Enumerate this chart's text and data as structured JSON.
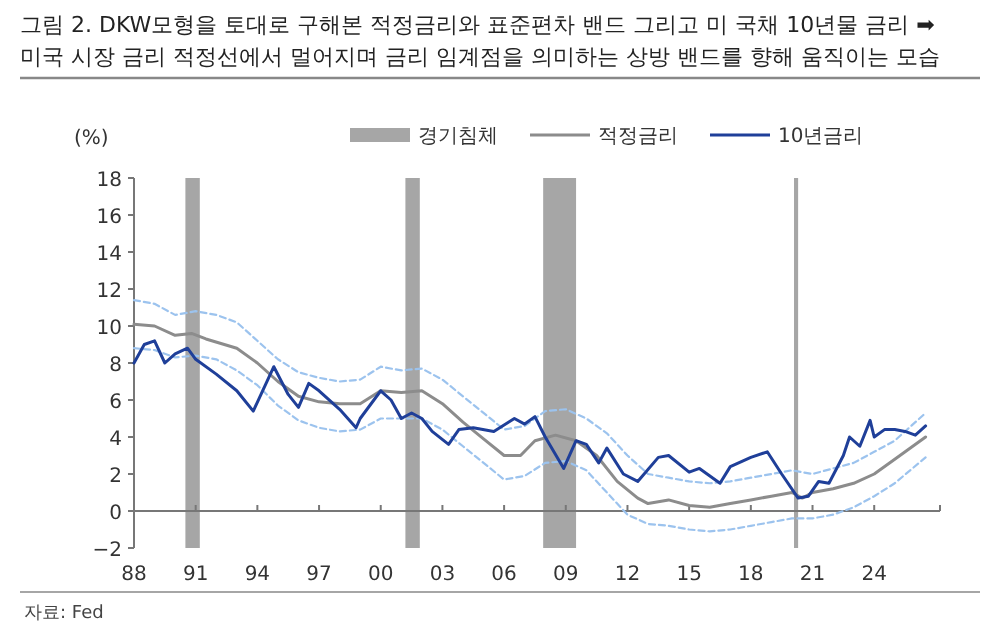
{
  "chart_data": {
    "type": "line",
    "title": "그림 2. DKW모형을 토대로 구해본 적정금리와 표준편차 밴드 그리고 미 국채 10년물 금리 ➡ 미국 시장 금리 적정선에서 멀어지며 금리 임계점을 의미하는 상방 밴드를 향해 움직이는 모습",
    "ylabel": "(%)",
    "legend": "top",
    "xlim": [
      1988,
      2027.2
    ],
    "ylim": [
      -2,
      18
    ],
    "yticks": [
      -2,
      0,
      2,
      4,
      6,
      8,
      10,
      12,
      14,
      16,
      18
    ],
    "xticks": [
      {
        "value": 1988,
        "label": "88"
      },
      {
        "value": 1991,
        "label": "91"
      },
      {
        "value": 1994,
        "label": "94"
      },
      {
        "value": 1997,
        "label": "97"
      },
      {
        "value": 2000,
        "label": "00"
      },
      {
        "value": 2003,
        "label": "03"
      },
      {
        "value": 2006,
        "label": "06"
      },
      {
        "value": 2009,
        "label": "09"
      },
      {
        "value": 2012,
        "label": "12"
      },
      {
        "value": 2015,
        "label": "15"
      },
      {
        "value": 2018,
        "label": "18"
      },
      {
        "value": 2021,
        "label": "21"
      },
      {
        "value": 2024,
        "label": "24"
      }
    ],
    "bands": [
      {
        "axis": "x",
        "from": 1990.5,
        "to": 1991.2,
        "label": "경기침체",
        "color": "#a6a6a6"
      },
      {
        "axis": "x",
        "from": 2001.2,
        "to": 2001.9,
        "color": "#a6a6a6"
      },
      {
        "axis": "x",
        "from": 2007.9,
        "to": 2009.5,
        "color": "#a6a6a6"
      },
      {
        "axis": "x",
        "from": 2020.1,
        "to": 2020.3,
        "color": "#a6a6a6"
      }
    ],
    "series": [
      {
        "color": "#9cc3ee",
        "line_style": "dashed",
        "x": [
          1988,
          1989,
          1990,
          1991,
          1992,
          1993,
          1994,
          1995,
          1996,
          1997,
          1998,
          1999,
          2000,
          2001,
          2002,
          2003,
          2004,
          2005,
          2006,
          2007,
          2008,
          2009,
          2010,
          2011,
          2012,
          2013,
          2014,
          2015,
          2016,
          2017,
          2018,
          2019,
          2020,
          2021,
          2022,
          2023,
          2024,
          2025,
          2026.5
        ],
        "values": [
          11.4,
          11.2,
          10.6,
          10.8,
          10.6,
          10.2,
          9.2,
          8.2,
          7.5,
          7.2,
          7.0,
          7.1,
          7.8,
          7.6,
          7.7,
          7.1,
          6.2,
          5.3,
          4.4,
          4.6,
          5.4,
          5.5,
          5.0,
          4.2,
          3.0,
          2.0,
          1.8,
          1.6,
          1.5,
          1.6,
          1.8,
          2.0,
          2.2,
          2.0,
          2.3,
          2.6,
          3.2,
          3.8,
          5.3
        ]
      },
      {
        "color": "#9cc3ee",
        "line_style": "dashed",
        "x": [
          1988,
          1989,
          1990,
          1991,
          1992,
          1993,
          1994,
          1995,
          1996,
          1997,
          1998,
          1999,
          2000,
          2001,
          2002,
          2003,
          2004,
          2005,
          2006,
          2007,
          2008,
          2009,
          2010,
          2011,
          2012,
          2013,
          2014,
          2015,
          2016,
          2017,
          2018,
          2019,
          2020,
          2021,
          2022,
          2023,
          2024,
          2025,
          2026.5
        ],
        "values": [
          8.8,
          8.7,
          8.3,
          8.4,
          8.2,
          7.6,
          6.8,
          5.7,
          4.9,
          4.5,
          4.3,
          4.4,
          5.0,
          5.0,
          5.0,
          4.4,
          3.5,
          2.6,
          1.7,
          1.9,
          2.6,
          2.7,
          2.2,
          1.0,
          -0.2,
          -0.7,
          -0.8,
          -1.0,
          -1.1,
          -1.0,
          -0.8,
          -0.6,
          -0.4,
          -0.4,
          -0.2,
          0.2,
          0.8,
          1.5,
          2.9
        ]
      },
      {
        "name": "적정금리",
        "color": "#8c8c8c",
        "line_style": "solid",
        "x": [
          1988,
          1989,
          1990,
          1990.8,
          1991.5,
          1993,
          1994,
          1995,
          1996,
          1997,
          1998,
          1999,
          2000,
          2001,
          2002,
          2003,
          2004,
          2005,
          2006,
          2006.8,
          2007.5,
          2008.5,
          2009.5,
          2010.5,
          2011.5,
          2012.5,
          2013,
          2014,
          2015,
          2016,
          2017,
          2018,
          2019,
          2020,
          2020.5,
          2021,
          2022,
          2023,
          2024,
          2025,
          2026.5
        ],
        "values": [
          10.1,
          10.0,
          9.5,
          9.6,
          9.3,
          8.8,
          8.0,
          7.0,
          6.2,
          5.9,
          5.8,
          5.8,
          6.5,
          6.4,
          6.5,
          5.8,
          4.8,
          3.9,
          3.0,
          3.0,
          3.8,
          4.1,
          3.8,
          3.0,
          1.6,
          0.7,
          0.4,
          0.6,
          0.3,
          0.2,
          0.4,
          0.6,
          0.8,
          1.0,
          0.7,
          1.0,
          1.2,
          1.5,
          2.0,
          2.8,
          4.0
        ]
      },
      {
        "name": "10년금리",
        "color": "#1f3f99",
        "line_style": "solid",
        "x": [
          1988,
          1988.5,
          1989,
          1989.5,
          1990,
          1990.6,
          1991,
          1992,
          1993,
          1993.8,
          1994.8,
          1995.5,
          1996,
          1996.5,
          1997,
          1998,
          1998.8,
          1999,
          2000,
          2000.5,
          2001,
          2001.5,
          2002,
          2002.5,
          2003.3,
          2003.8,
          2004.5,
          2005.5,
          2006.5,
          2007,
          2007.5,
          2008,
          2008.9,
          2009.5,
          2010,
          2010.6,
          2011,
          2011.8,
          2012.5,
          2013.5,
          2014,
          2015,
          2015.5,
          2016.5,
          2017,
          2018,
          2018.8,
          2019.5,
          2020.3,
          2020.8,
          2021.3,
          2021.8,
          2022.5,
          2022.8,
          2023.3,
          2023.8,
          2024,
          2024.5,
          2025,
          2025.5,
          2026,
          2026.5
        ],
        "values": [
          8.0,
          9.0,
          9.2,
          8.0,
          8.5,
          8.8,
          8.2,
          7.4,
          6.5,
          5.4,
          7.8,
          6.3,
          5.6,
          6.9,
          6.5,
          5.5,
          4.5,
          5.0,
          6.5,
          6.0,
          5.0,
          5.3,
          5.0,
          4.3,
          3.6,
          4.4,
          4.5,
          4.3,
          5.0,
          4.7,
          5.1,
          4.0,
          2.3,
          3.8,
          3.6,
          2.6,
          3.4,
          2.0,
          1.6,
          2.9,
          3.0,
          2.1,
          2.3,
          1.5,
          2.4,
          2.9,
          3.2,
          2.0,
          0.7,
          0.8,
          1.6,
          1.5,
          3.0,
          4.0,
          3.5,
          4.9,
          4.0,
          4.4,
          4.4,
          4.3,
          4.1,
          4.6
        ]
      }
    ],
    "annotations": [
      "자료: Fed"
    ]
  }
}
